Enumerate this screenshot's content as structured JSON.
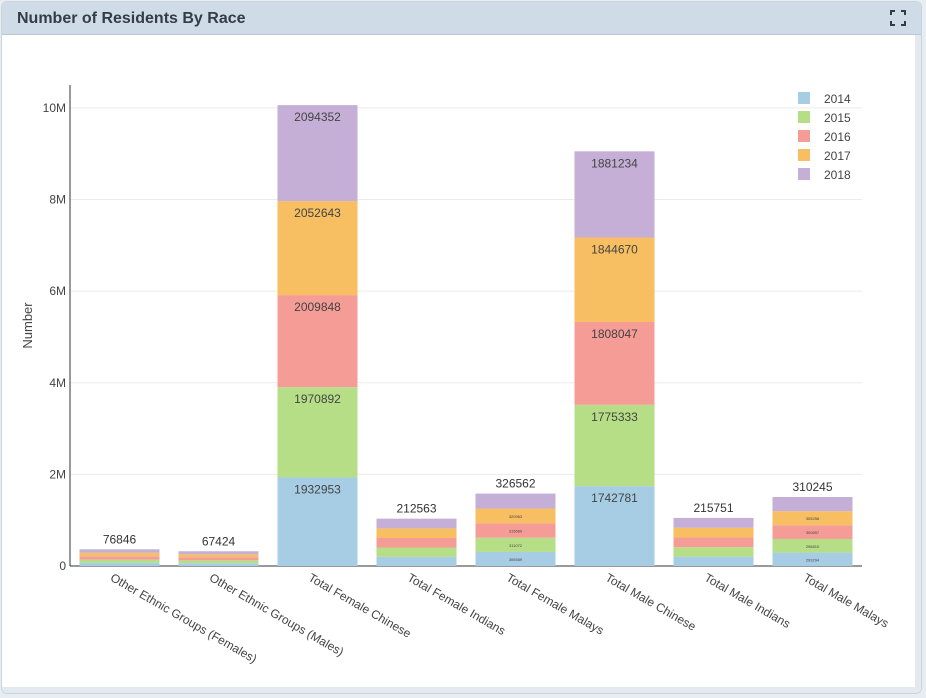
{
  "panel": {
    "title": "Number of Residents By Race",
    "expand_icon": "expand-icon"
  },
  "chart_data": {
    "type": "bar",
    "stacked": true,
    "title": "Number of Residents By Race",
    "xlabel": "",
    "ylabel": "Number",
    "ylim": [
      0,
      10500000
    ],
    "yticks": [
      0,
      2000000,
      4000000,
      6000000,
      8000000,
      10000000
    ],
    "ytick_labels": [
      "0",
      "2M",
      "4M",
      "6M",
      "8M",
      "10M"
    ],
    "grid": true,
    "legend_position": "top-right",
    "categories": [
      "Other Ethnic Groups (Females)",
      "Other Ethnic Groups (Males)",
      "Total Female Chinese",
      "Total Female Indians",
      "Total Female Malays",
      "Total Male Chinese",
      "Total Male Indians",
      "Total Male Malays"
    ],
    "series": [
      {
        "name": "2014",
        "color": "#a6cde4",
        "values": [
          69000,
          61000,
          1932953,
          200000,
          306569,
          1742781,
          204000,
          293294
        ]
      },
      {
        "name": "2015",
        "color": "#b6de87",
        "values": [
          71000,
          63000,
          1970892,
          204000,
          311072,
          1775333,
          207000,
          296810
        ]
      },
      {
        "name": "2016",
        "color": "#f59c97",
        "values": [
          73000,
          64500,
          2009848,
          207000,
          315669,
          1808047,
          210000,
          300897
        ]
      },
      {
        "name": "2017",
        "color": "#f7be62",
        "values": [
          75000,
          66000,
          2052643,
          210000,
          320963,
          1844670,
          213000,
          305258
        ]
      },
      {
        "name": "2018",
        "color": "#c6afd6",
        "values": [
          76846,
          67424,
          2094352,
          212563,
          326562,
          1881234,
          215751,
          310245
        ]
      }
    ],
    "data_labels": [
      [
        "",
        "",
        "",
        "",
        "76846"
      ],
      [
        "",
        "",
        "",
        "",
        "67424"
      ],
      [
        "1932953",
        "1970892",
        "2009848",
        "2052643",
        "2094352"
      ],
      [
        "",
        "",
        "",
        "",
        "212563"
      ],
      [
        "306569",
        "311072",
        "315669",
        "320963",
        "326562"
      ],
      [
        "1742781",
        "1775333",
        "1808047",
        "1844670",
        "1881234"
      ],
      [
        "",
        "",
        "",
        "",
        "215751"
      ],
      [
        "293294",
        "296810",
        "300897",
        "305258",
        "310245"
      ]
    ]
  }
}
